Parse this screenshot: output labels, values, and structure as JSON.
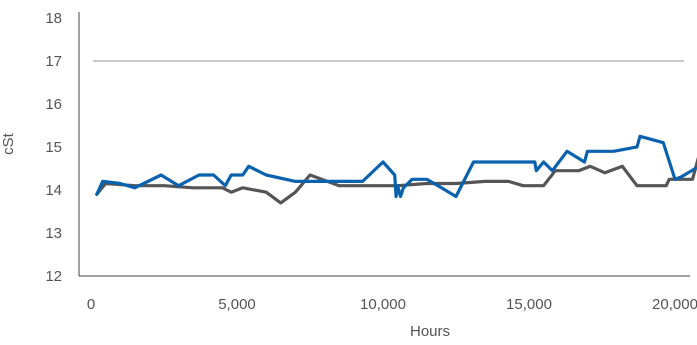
{
  "chart_data": {
    "type": "line",
    "xlabel": "Hours",
    "ylabel": "cSt",
    "xlim": [
      0,
      21200
    ],
    "ylim": [
      12,
      18
    ],
    "xticks": [
      0,
      5000,
      10000,
      15000,
      20000
    ],
    "xtick_labels": [
      "0",
      "5,000",
      "10,000",
      "15,000",
      "20,000"
    ],
    "yticks": [
      12,
      13,
      14,
      15,
      16,
      17,
      18
    ],
    "ytick_labels": [
      "12",
      "13",
      "14",
      "15",
      "16",
      "17",
      "18"
    ],
    "grid": {
      "horizontal_at": [
        17
      ]
    },
    "series": [
      {
        "color": "#0a62ae",
        "x": [
          200,
          400,
          1000,
          1500,
          2400,
          3000,
          3700,
          4200,
          4600,
          4800,
          5200,
          5400,
          6000,
          7000,
          7800,
          8500,
          9300,
          10000,
          10400,
          10450,
          10500,
          10600,
          10700,
          11000,
          11500,
          12000,
          12500,
          13100,
          13800,
          14500,
          15200,
          15250,
          15500,
          15800,
          16300,
          16900,
          17000,
          17900,
          18700,
          18800,
          19600,
          20000,
          20200,
          20700
        ],
        "values": [
          13.9,
          14.2,
          14.15,
          14.05,
          14.35,
          14.1,
          14.35,
          14.35,
          14.1,
          14.35,
          14.35,
          14.55,
          14.35,
          14.2,
          14.2,
          14.2,
          14.2,
          14.65,
          14.35,
          13.85,
          14.1,
          13.85,
          14.05,
          14.25,
          14.25,
          14.05,
          13.85,
          14.65,
          14.65,
          14.65,
          14.65,
          14.45,
          14.65,
          14.45,
          14.9,
          14.65,
          14.9,
          14.9,
          15.0,
          15.25,
          15.1,
          14.25,
          14.3,
          14.5
        ]
      },
      {
        "color": "#555555",
        "x": [
          200,
          500,
          1500,
          2500,
          3500,
          4500,
          4800,
          5200,
          6000,
          6500,
          7000,
          7500,
          8500,
          9500,
          10500,
          11500,
          12500,
          13500,
          14300,
          14800,
          15500,
          15900,
          16300,
          16700,
          17100,
          17600,
          18200,
          18700,
          19200,
          19700,
          19800,
          20300,
          20600,
          20900
        ],
        "values": [
          13.9,
          14.15,
          14.1,
          14.1,
          14.05,
          14.05,
          13.95,
          14.05,
          13.95,
          13.7,
          13.95,
          14.35,
          14.1,
          14.1,
          14.1,
          14.15,
          14.15,
          14.2,
          14.2,
          14.1,
          14.1,
          14.45,
          14.45,
          14.45,
          14.55,
          14.4,
          14.55,
          14.1,
          14.1,
          14.1,
          14.25,
          14.25,
          14.25,
          15.0
        ]
      }
    ]
  }
}
